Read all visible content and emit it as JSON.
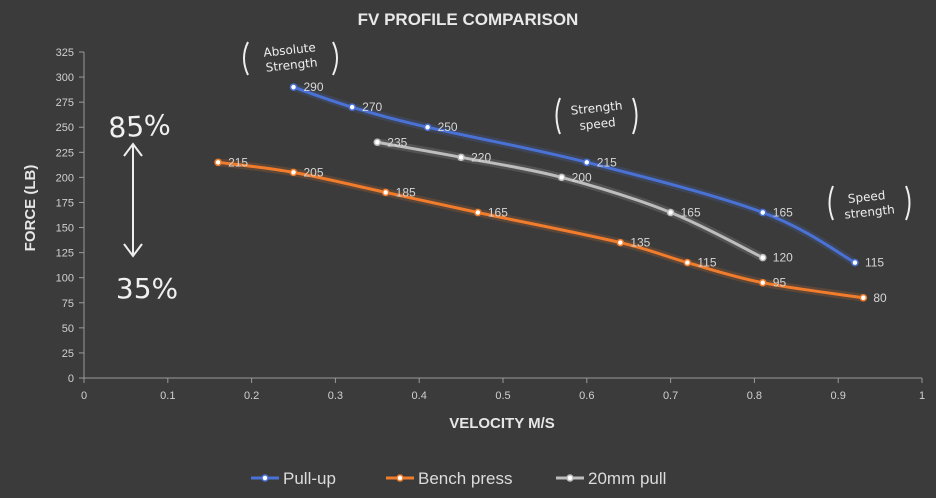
{
  "chart_data": {
    "type": "line",
    "title": "FV PROFILE COMPARISON",
    "xlabel": "VELOCITY M/S",
    "ylabel": "FORCE (LB)",
    "xlim": [
      0,
      1
    ],
    "ylim": [
      0,
      325
    ],
    "x_ticks": [
      0,
      0.1,
      0.2,
      0.3,
      0.4,
      0.5,
      0.6,
      0.7,
      0.8,
      0.9,
      1
    ],
    "x_tick_labels": [
      "0",
      "0.1",
      "0.2",
      "0.3",
      "0.4",
      "0.5",
      "0.6",
      "0.7",
      "0.8",
      "0.9",
      "1"
    ],
    "y_ticks": [
      0,
      25,
      50,
      75,
      100,
      125,
      150,
      175,
      200,
      225,
      250,
      275,
      300,
      325
    ],
    "y_tick_labels": [
      "0",
      "25",
      "50",
      "75",
      "100",
      "125",
      "150",
      "175",
      "200",
      "225",
      "250",
      "275",
      "300",
      "325"
    ],
    "grid": "none",
    "legend_position": "bottom",
    "series": [
      {
        "name": "Pull-up",
        "color": "#4a72d6",
        "x": [
          0.25,
          0.32,
          0.41,
          0.6,
          0.81,
          0.92
        ],
        "y": [
          290,
          270,
          250,
          215,
          165,
          115
        ],
        "labels": [
          "290",
          "270",
          "250",
          "215",
          "165",
          "115"
        ]
      },
      {
        "name": "Bench press",
        "color": "#f07c2c",
        "x": [
          0.16,
          0.25,
          0.36,
          0.47,
          0.64,
          0.72,
          0.81,
          0.93
        ],
        "y": [
          215,
          205,
          185,
          165,
          135,
          115,
          95,
          80
        ],
        "labels": [
          "215",
          "205",
          "185",
          "165",
          "135",
          "115",
          "95",
          "80"
        ]
      },
      {
        "name": "20mm pull",
        "color": "#bdbdbd",
        "x": [
          0.35,
          0.45,
          0.57,
          0.7,
          0.81
        ],
        "y": [
          235,
          220,
          200,
          165,
          120
        ],
        "labels": [
          "235",
          "220",
          "200",
          "165",
          "120"
        ]
      }
    ],
    "annotations": {
      "absolute_strength": [
        "Absolute",
        "Strength"
      ],
      "strength_speed": [
        "Strength",
        "speed"
      ],
      "speed_strength": [
        "Speed",
        "strength"
      ],
      "pct_high": "85%",
      "pct_low": "35%"
    }
  }
}
